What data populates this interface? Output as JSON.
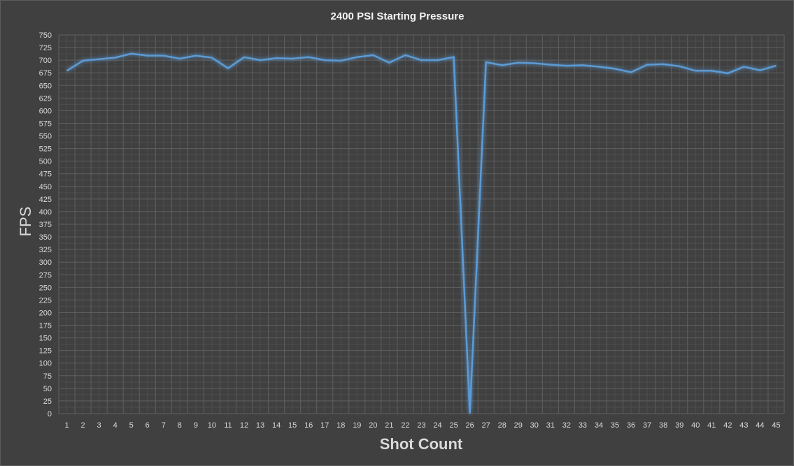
{
  "chart_data": {
    "type": "line",
    "title": "2400 PSI Starting Pressure",
    "xlabel": "Shot Count",
    "ylabel": "FPS",
    "ylim": [
      0,
      750
    ],
    "y_ticks": [
      0,
      25,
      50,
      75,
      100,
      125,
      150,
      175,
      200,
      225,
      250,
      275,
      300,
      325,
      350,
      375,
      400,
      425,
      450,
      475,
      500,
      525,
      550,
      575,
      600,
      625,
      650,
      675,
      700,
      725,
      750
    ],
    "x": [
      1,
      2,
      3,
      4,
      5,
      6,
      7,
      8,
      9,
      10,
      11,
      12,
      13,
      14,
      15,
      16,
      17,
      18,
      19,
      20,
      21,
      22,
      23,
      24,
      25,
      26,
      27,
      28,
      29,
      30,
      31,
      32,
      33,
      34,
      35,
      36,
      37,
      38,
      39,
      40,
      41,
      42,
      43,
      44,
      45
    ],
    "grid": true,
    "legend": "none",
    "series": [
      {
        "color": "#5b9bd5",
        "values": [
          679,
          699,
          702,
          705,
          713,
          709,
          709,
          703,
          709,
          705,
          684,
          706,
          700,
          704,
          703,
          706,
          700,
          699,
          706,
          710,
          695,
          710,
          700,
          700,
          706,
          0,
          696,
          690,
          695,
          694,
          691,
          689,
          690,
          687,
          683,
          676,
          691,
          692,
          688,
          679,
          679,
          674,
          687,
          680,
          689
        ]
      }
    ]
  }
}
